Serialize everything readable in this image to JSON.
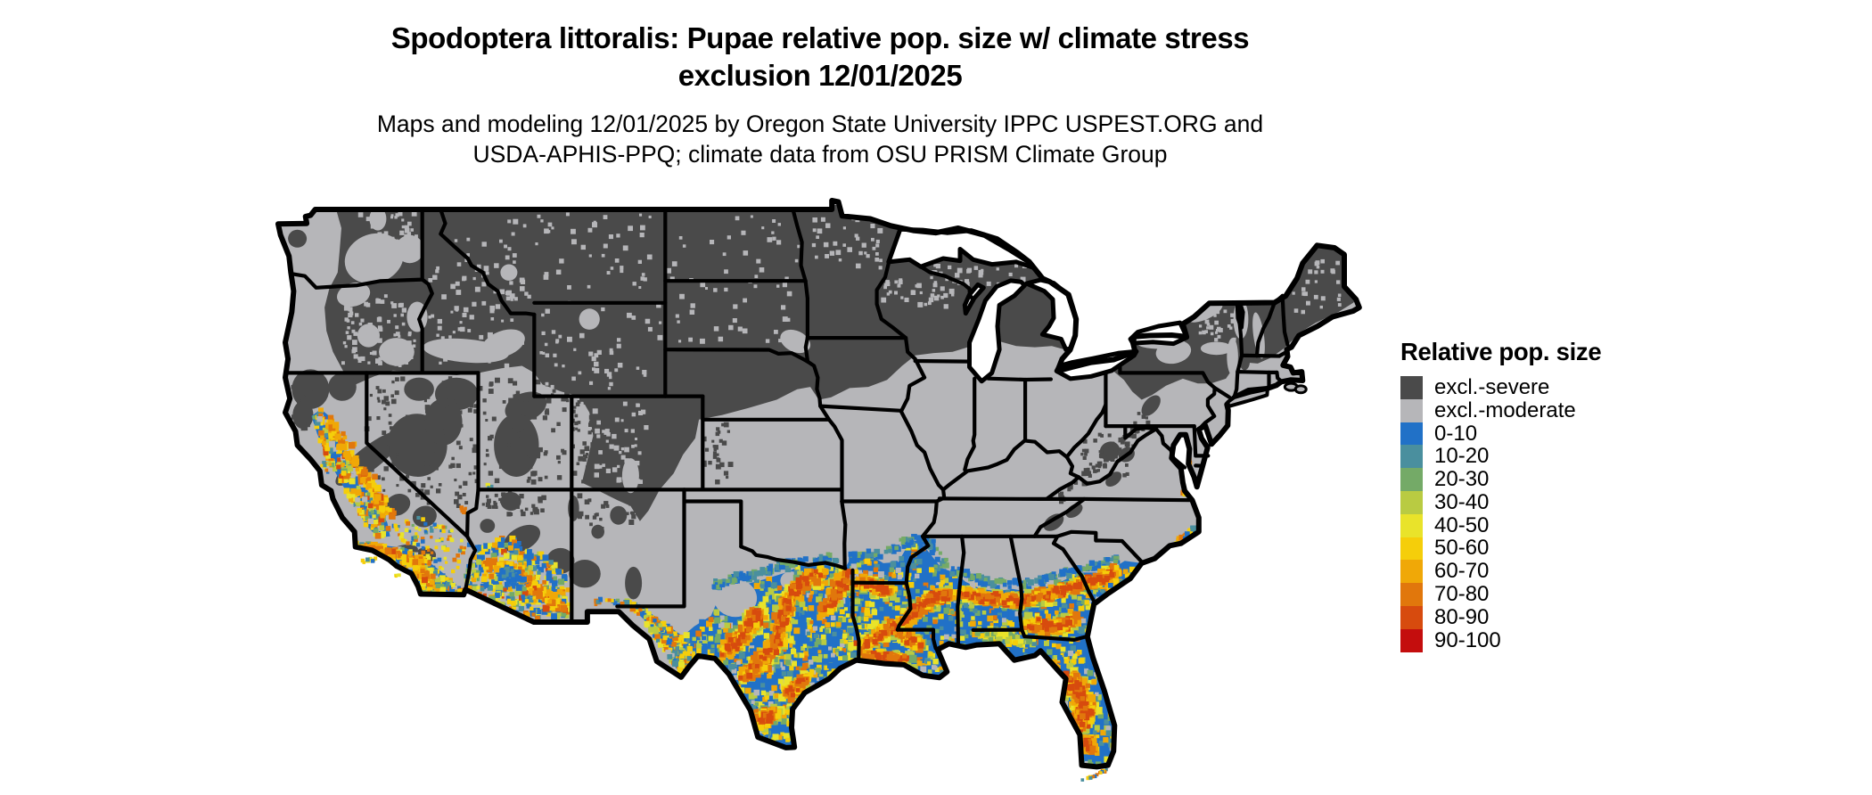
{
  "title": {
    "line1": "Spodoptera littoralis: Pupae relative pop. size w/ climate stress",
    "line2": "exclusion 12/01/2025"
  },
  "subtitle": {
    "line1": "Maps and modeling 12/01/2025 by Oregon State University IPPC USPEST.ORG and",
    "line2": "USDA-APHIS-PPQ; climate data from OSU PRISM Climate Group"
  },
  "legend": {
    "title": "Relative pop. size",
    "items": [
      {
        "label": "excl.-severe",
        "color": "#4a4a4a"
      },
      {
        "label": "excl.-moderate",
        "color": "#b6b6b9"
      },
      {
        "label": "0-10",
        "color": "#2171c7"
      },
      {
        "label": "10-20",
        "color": "#4a8f9e"
      },
      {
        "label": "20-30",
        "color": "#74aa67"
      },
      {
        "label": "30-40",
        "color": "#b9cb42"
      },
      {
        "label": "40-50",
        "color": "#e9e32a"
      },
      {
        "label": "50-60",
        "color": "#f5ce0a"
      },
      {
        "label": "60-70",
        "color": "#f0a807"
      },
      {
        "label": "70-80",
        "color": "#e1770c"
      },
      {
        "label": "80-90",
        "color": "#d74b0e"
      },
      {
        "label": "90-100",
        "color": "#c40d0d"
      }
    ]
  },
  "map_colors": {
    "background": "#ffffff",
    "border": "#000000",
    "water": "#ffffff"
  }
}
